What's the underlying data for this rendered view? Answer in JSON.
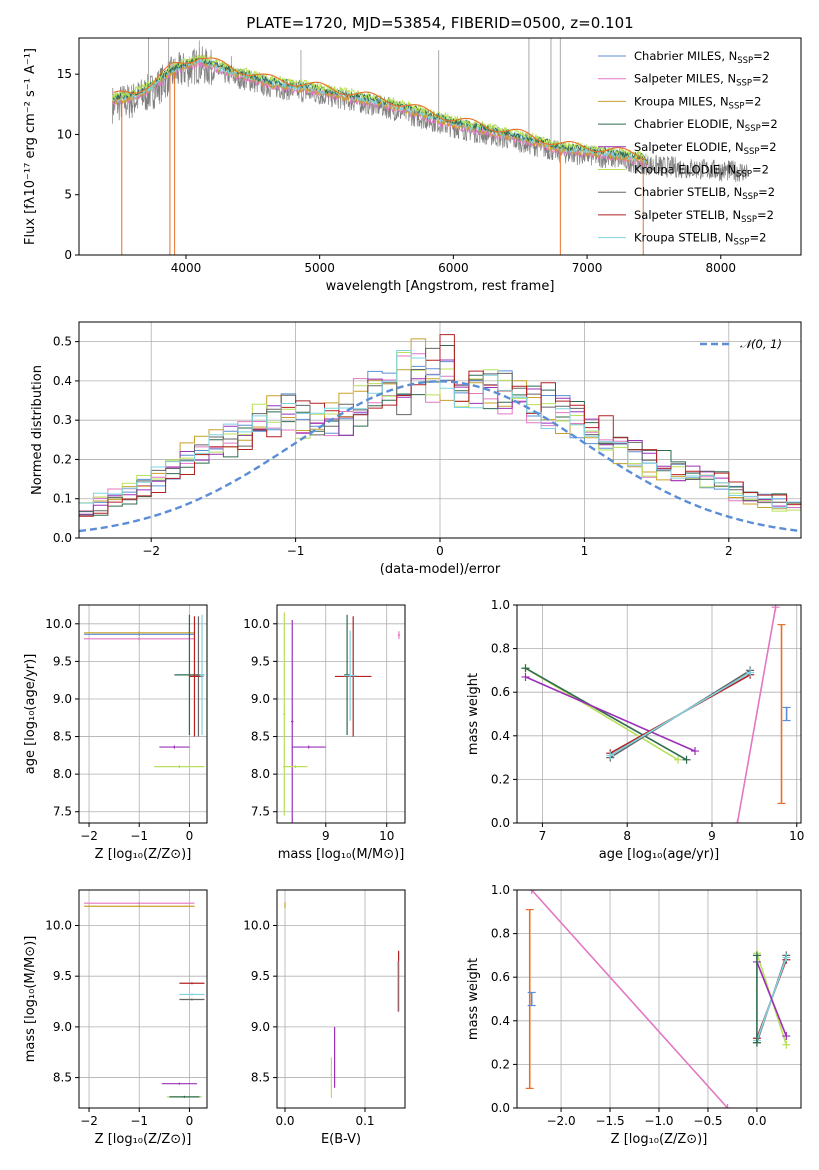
{
  "figure": {
    "title": "PLATE=1720, MJD=53854, FIBERID=0500, z=0.101"
  },
  "colors": {
    "Chabrier MILES": "#5b8ed6",
    "Salpeter MILES": "#e377c2",
    "Kroupa MILES": "#c8a02a",
    "Chabrier ELODIE": "#2f6b4f",
    "Salpeter ELODIE": "#9b30b8",
    "Kroupa ELODIE": "#b8e05a",
    "Chabrier STELIB": "#666666",
    "Salpeter STELIB": "#b22222",
    "Kroupa STELIB": "#7fd3e0",
    "spectrum": "#7f7f7f",
    "model_orange": "#e8702a",
    "gauss": "#5b8ed6"
  },
  "legend": [
    {
      "name": "Chabrier MILES",
      "label": "Chabrier MILES, N",
      "sub": "SSP",
      "tail": "=2"
    },
    {
      "name": "Salpeter MILES",
      "label": "Salpeter MILES, N",
      "sub": "SSP",
      "tail": "=2"
    },
    {
      "name": "Kroupa MILES",
      "label": "Kroupa MILES, N",
      "sub": "SSP",
      "tail": "=2"
    },
    {
      "name": "Chabrier ELODIE",
      "label": "Chabrier ELODIE, N",
      "sub": "SSP",
      "tail": "=2"
    },
    {
      "name": "Salpeter ELODIE",
      "label": "Salpeter ELODIE, N",
      "sub": "SSP",
      "tail": "=2"
    },
    {
      "name": "Kroupa ELODIE",
      "label": "Kroupa ELODIE, N",
      "sub": "SSP",
      "tail": "=2"
    },
    {
      "name": "Chabrier STELIB",
      "label": "Chabrier STELIB, N",
      "sub": "SSP",
      "tail": "=2"
    },
    {
      "name": "Salpeter STELIB",
      "label": "Salpeter STELIB, N",
      "sub": "SSP",
      "tail": "=2"
    },
    {
      "name": "Kroupa STELIB",
      "label": "Kroupa STELIB, N",
      "sub": "SSP",
      "tail": "=2"
    }
  ],
  "chart_data": [
    {
      "id": "spectrum",
      "type": "line",
      "xlabel": "wavelength [Angstrom, rest frame]",
      "ylabel": "Flux [fλ10⁻¹⁷ erg cm⁻² s⁻¹ A⁻¹]",
      "xlim": [
        3200,
        8600
      ],
      "ylim": [
        0,
        18
      ],
      "xticks": [
        4000,
        5000,
        6000,
        7000,
        8000
      ],
      "yticks": [
        0,
        5,
        10,
        15
      ],
      "grid": false,
      "legend_position": "upper right",
      "continuum_knots": [
        [
          3450,
          12.5
        ],
        [
          3600,
          12.8
        ],
        [
          3750,
          13.6
        ],
        [
          3900,
          15.0
        ],
        [
          4100,
          15.8
        ],
        [
          4300,
          15.0
        ],
        [
          4600,
          14.0
        ],
        [
          5000,
          13.3
        ],
        [
          5500,
          12.2
        ],
        [
          6000,
          10.6
        ],
        [
          6500,
          9.4
        ],
        [
          6800,
          8.5
        ],
        [
          7200,
          8.0
        ],
        [
          7500,
          7.4
        ],
        [
          8000,
          7.0
        ],
        [
          8200,
          6.9
        ]
      ],
      "model_range": [
        3450,
        7450
      ],
      "data_spikes": [
        [
          3720,
          18
        ],
        [
          3870,
          18
        ],
        [
          4100,
          17.8
        ],
        [
          4340,
          16.5
        ],
        [
          4860,
          17
        ],
        [
          5890,
          17
        ],
        [
          6565,
          18
        ],
        [
          6730,
          18
        ],
        [
          6800,
          18
        ]
      ],
      "model_dips": [
        [
          3520,
          0
        ],
        [
          3880,
          0
        ],
        [
          3915,
          0
        ],
        [
          6800,
          0
        ],
        [
          7420,
          0
        ]
      ]
    },
    {
      "id": "residuals",
      "type": "histogram",
      "xlabel": "(data-model)/error",
      "ylabel": "Normed distribution",
      "xlim": [
        -2.5,
        2.5
      ],
      "ylim": [
        0,
        0.55
      ],
      "xticks": [
        -2,
        -1,
        0,
        1,
        2
      ],
      "yticks": [
        0.0,
        0.1,
        0.2,
        0.3,
        0.4,
        0.5
      ],
      "grid": true,
      "gauss_label": "𝒩(0, 1)",
      "bin_width": 0.1,
      "base_heights": [
        0.06,
        0.08,
        0.1,
        0.11,
        0.13,
        0.15,
        0.17,
        0.2,
        0.22,
        0.24,
        0.25,
        0.26,
        0.28,
        0.3,
        0.32,
        0.3,
        0.29,
        0.28,
        0.3,
        0.34,
        0.37,
        0.38,
        0.36,
        0.42,
        0.47,
        0.4,
        0.38,
        0.36,
        0.37,
        0.38,
        0.36,
        0.35,
        0.33,
        0.32,
        0.3,
        0.28,
        0.26,
        0.24,
        0.22,
        0.2,
        0.18,
        0.17,
        0.16,
        0.15,
        0.14,
        0.13,
        0.11,
        0.1,
        0.09,
        0.08
      ]
    },
    {
      "id": "age-Z",
      "type": "scatter",
      "xlabel": "Z [log₁₀(Z/Z⊙)]",
      "ylabel": "age  [log₁₀(age/yr)]",
      "xlim": [
        -2.2,
        0.35
      ],
      "ylim": [
        7.35,
        10.25
      ],
      "xticks": [
        -2,
        -1,
        0
      ],
      "yticks": [
        7.5,
        8.0,
        8.5,
        9.0,
        9.5,
        10.0
      ],
      "grid": true,
      "points": [
        {
          "s": "Chabrier MILES",
          "x": -1.0,
          "y": 9.86,
          "xerr": 1.1,
          "yerr": 0.02
        },
        {
          "s": "Salpeter MILES",
          "x": -1.0,
          "y": 9.8,
          "xerr": 1.1,
          "yerr": 0.02
        },
        {
          "s": "Kroupa MILES",
          "x": -1.0,
          "y": 9.88,
          "xerr": 1.1,
          "yerr": 0.02
        },
        {
          "s": "Chabrier ELODIE",
          "x": 0.0,
          "y": 9.32,
          "xerr": 0.3,
          "yerr": 0.8
        },
        {
          "s": "Salpeter ELODIE",
          "x": -0.3,
          "y": 8.36,
          "xerr": 0.3,
          "yerr": 0.02
        },
        {
          "s": "Kroupa ELODIE",
          "x": -0.2,
          "y": 8.1,
          "xerr": 0.5,
          "yerr": 0.02
        },
        {
          "s": "Chabrier STELIB",
          "x": 0.18,
          "y": 9.3,
          "xerr": 0.1,
          "yerr": 0.8
        },
        {
          "s": "Salpeter STELIB",
          "x": 0.1,
          "y": 9.3,
          "xerr": 0.1,
          "yerr": 0.8
        },
        {
          "s": "Kroupa STELIB",
          "x": 0.25,
          "y": 9.32,
          "xerr": 0.05,
          "yerr": 0.8
        }
      ]
    },
    {
      "id": "age-mass",
      "type": "scatter",
      "xlabel": "mass [log₁₀(M/M⊙)]",
      "ylabel": "",
      "xlim": [
        8.2,
        10.3
      ],
      "ylim": [
        7.35,
        10.25
      ],
      "xticks": [
        9,
        10
      ],
      "yticks": [
        7.5,
        8.0,
        8.5,
        9.0,
        9.5,
        10.0
      ],
      "grid": true,
      "points": [
        {
          "s": "Kroupa ELODIE",
          "x": 8.32,
          "y": 8.8,
          "xerr": 0.02,
          "yerr": 1.35
        },
        {
          "s": "Salpeter ELODIE",
          "x": 8.45,
          "y": 8.7,
          "xerr": 0.02,
          "yerr": 1.35
        },
        {
          "s": "Salpeter ELODIE",
          "x": 8.72,
          "y": 8.36,
          "xerr": 0.28,
          "yerr": 0.02
        },
        {
          "s": "Kroupa ELODIE",
          "x": 8.5,
          "y": 8.1,
          "xerr": 0.2,
          "yerr": 0.02
        },
        {
          "s": "Chabrier ELODIE",
          "x": 9.35,
          "y": 9.32,
          "xerr": 0.05,
          "yerr": 0.8
        },
        {
          "s": "Salpeter STELIB",
          "x": 9.45,
          "y": 9.3,
          "xerr": 0.3,
          "yerr": 0.8
        },
        {
          "s": "Kroupa STELIB",
          "x": 9.4,
          "y": 9.31,
          "xerr": 0.1,
          "yerr": 0.6
        },
        {
          "s": "Salpeter MILES",
          "x": 10.2,
          "y": 9.85,
          "xerr": 0.02,
          "yerr": 0.05
        }
      ]
    },
    {
      "id": "weight-age",
      "type": "scatter",
      "xlabel": "age  [log₁₀(age/yr)]",
      "ylabel": "mass weight",
      "xlim": [
        6.7,
        10.05
      ],
      "ylim": [
        0.0,
        1.0
      ],
      "xticks": [
        7,
        8,
        9,
        10
      ],
      "yticks": [
        0.0,
        0.2,
        0.4,
        0.6,
        0.8,
        1.0
      ],
      "grid": true,
      "lines": [
        {
          "s": "Kroupa ELODIE",
          "pts": [
            [
              6.8,
              0.71
            ],
            [
              8.6,
              0.29
            ]
          ]
        },
        {
          "s": "Chabrier ELODIE",
          "pts": [
            [
              6.8,
              0.71
            ],
            [
              8.7,
              0.29
            ]
          ]
        },
        {
          "s": "Salpeter ELODIE",
          "pts": [
            [
              6.8,
              0.67
            ],
            [
              8.8,
              0.33
            ]
          ]
        },
        {
          "s": "Salpeter STELIB",
          "pts": [
            [
              7.8,
              0.32
            ],
            [
              9.45,
              0.68
            ]
          ]
        },
        {
          "s": "Chabrier STELIB",
          "pts": [
            [
              7.8,
              0.3
            ],
            [
              9.45,
              0.7
            ]
          ]
        },
        {
          "s": "Kroupa STELIB",
          "pts": [
            [
              7.8,
              0.31
            ],
            [
              9.45,
              0.69
            ]
          ]
        },
        {
          "s": "Salpeter MILES",
          "pts": [
            [
              9.3,
              0.0
            ],
            [
              9.75,
              0.99
            ]
          ]
        }
      ],
      "errbars": [
        {
          "s": "model_orange",
          "x": 9.82,
          "y0": 0.09,
          "y1": 0.91
        },
        {
          "s": "Chabrier MILES",
          "x": 9.88,
          "y0": 0.47,
          "y1": 0.53
        }
      ]
    },
    {
      "id": "mass-Z",
      "type": "scatter",
      "xlabel": "Z [log₁₀(Z/Z⊙)]",
      "ylabel": "mass [log₁₀(M/M⊙)]",
      "xlim": [
        -2.2,
        0.35
      ],
      "ylim": [
        8.2,
        10.35
      ],
      "xticks": [
        -2,
        -1,
        0
      ],
      "yticks": [
        8.5,
        9.0,
        9.5,
        10.0
      ],
      "grid": true,
      "points": [
        {
          "s": "Salpeter MILES",
          "x": -1.0,
          "y": 10.22,
          "xerr": 1.1,
          "yerr": 0.01
        },
        {
          "s": "Kroupa MILES",
          "x": -1.0,
          "y": 10.19,
          "xerr": 1.1,
          "yerr": 0.01
        },
        {
          "s": "Salpeter STELIB",
          "x": 0.05,
          "y": 9.43,
          "xerr": 0.25,
          "yerr": 0.01
        },
        {
          "s": "Kroupa STELIB",
          "x": 0.05,
          "y": 9.32,
          "xerr": 0.25,
          "yerr": 0.01
        },
        {
          "s": "Chabrier STELIB",
          "x": 0.05,
          "y": 9.27,
          "xerr": 0.25,
          "yerr": 0.01
        },
        {
          "s": "Salpeter ELODIE",
          "x": -0.2,
          "y": 8.44,
          "xerr": 0.35,
          "yerr": 0.01
        },
        {
          "s": "Kroupa ELODIE",
          "x": -0.1,
          "y": 8.31,
          "xerr": 0.35,
          "yerr": 0.01
        },
        {
          "s": "Chabrier ELODIE",
          "x": -0.1,
          "y": 8.31,
          "xerr": 0.3,
          "yerr": 0.01
        }
      ]
    },
    {
      "id": "mass-ebv",
      "type": "scatter",
      "xlabel": "E(B-V)",
      "ylabel": "",
      "xlim": [
        -0.01,
        0.15
      ],
      "ylim": [
        8.2,
        10.35
      ],
      "xticks": [
        0.0,
        0.1
      ],
      "yticks": [
        8.5,
        9.0,
        9.5,
        10.0
      ],
      "grid": true,
      "points": [
        {
          "s": "Kroupa MILES",
          "x": 0.0,
          "y": 10.2,
          "xerr": 0.0,
          "yerr": 0.03
        },
        {
          "s": "Salpeter ELODIE",
          "x": 0.062,
          "y": 8.7,
          "xerr": 0.0,
          "yerr": 0.3
        },
        {
          "s": "Kroupa ELODIE",
          "x": 0.058,
          "y": 8.5,
          "xerr": 0.0,
          "yerr": 0.2
        },
        {
          "s": "Salpeter STELIB",
          "x": 0.142,
          "y": 9.45,
          "xerr": 0.0,
          "yerr": 0.3
        },
        {
          "s": "Kroupa STELIB",
          "x": 0.141,
          "y": 9.4,
          "xerr": 0.0,
          "yerr": 0.25
        }
      ]
    },
    {
      "id": "weight-Z",
      "type": "scatter",
      "xlabel": "Z [log₁₀(Z/Z⊙)]",
      "ylabel": "mass weight",
      "xlim": [
        -2.45,
        0.45
      ],
      "ylim": [
        0.0,
        1.0
      ],
      "xticks": [
        -2.0,
        -1.5,
        -1.0,
        -0.5,
        0.0
      ],
      "yticks": [
        0.0,
        0.2,
        0.4,
        0.6,
        0.8,
        1.0
      ],
      "grid": true,
      "lines": [
        {
          "s": "Salpeter MILES",
          "pts": [
            [
              -2.3,
              1.0
            ],
            [
              -0.3,
              0.0
            ]
          ]
        },
        {
          "s": "Chabrier STELIB",
          "pts": [
            [
              0.0,
              0.3
            ],
            [
              0.3,
              0.7
            ]
          ]
        },
        {
          "s": "Salpeter STELIB",
          "pts": [
            [
              0.0,
              0.32
            ],
            [
              0.3,
              0.68
            ]
          ]
        },
        {
          "s": "Kroupa STELIB",
          "pts": [
            [
              0.0,
              0.31
            ],
            [
              0.3,
              0.69
            ]
          ]
        },
        {
          "s": "Kroupa ELODIE",
          "pts": [
            [
              0.0,
              0.71
            ],
            [
              0.3,
              0.29
            ]
          ]
        },
        {
          "s": "Salpeter ELODIE",
          "pts": [
            [
              0.0,
              0.67
            ],
            [
              0.3,
              0.33
            ]
          ]
        },
        {
          "s": "Chabrier ELODIE",
          "pts": [
            [
              0.0,
              0.7
            ],
            [
              0.0,
              0.3
            ]
          ]
        }
      ],
      "errbars": [
        {
          "s": "model_orange",
          "x": -2.32,
          "y0": 0.09,
          "y1": 0.91
        },
        {
          "s": "Chabrier MILES",
          "x": -2.3,
          "y0": 0.47,
          "y1": 0.53
        }
      ]
    }
  ]
}
